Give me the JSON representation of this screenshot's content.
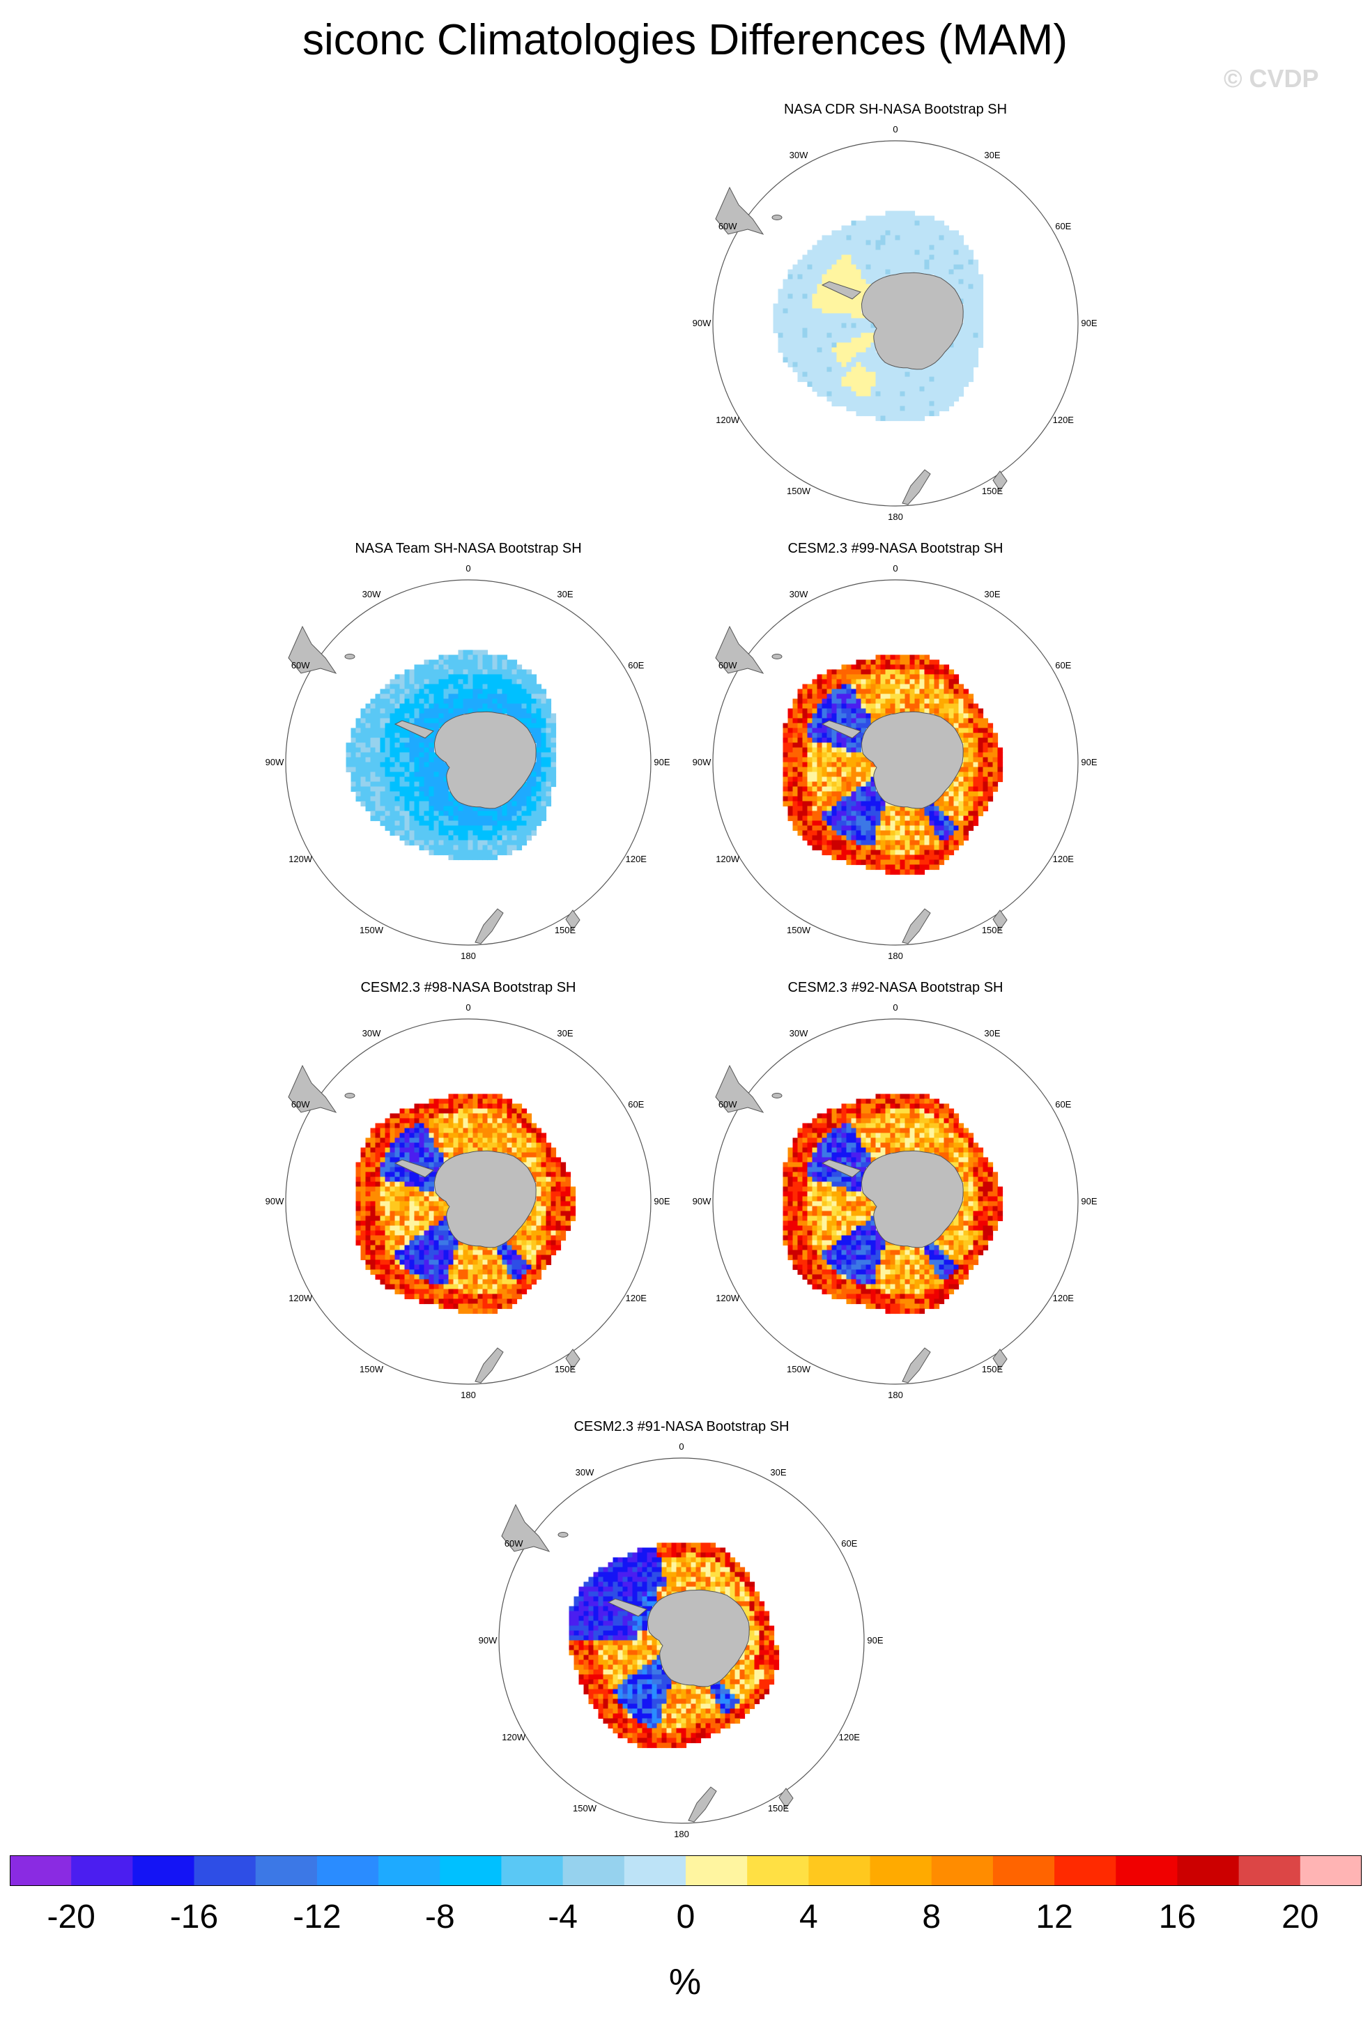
{
  "title": "siconc Climatologies Differences (MAM)",
  "watermark": "© CVDP",
  "longitude_labels": [
    "0",
    "30E",
    "60E",
    "90E",
    "120E",
    "150E",
    "180",
    "150W",
    "120W",
    "90W",
    "60W",
    "30W"
  ],
  "panels": [
    {
      "title": "NASA CDR SH-NASA Bootstrap SH",
      "pattern": "cdr"
    },
    {
      "title": "NASA Team SH-NASA Bootstrap SH",
      "pattern": "team"
    },
    {
      "title": "CESM2.3 #99-NASA Bootstrap SH",
      "pattern": "model"
    },
    {
      "title": "CESM2.3 #98-NASA Bootstrap SH",
      "pattern": "model"
    },
    {
      "title": "CESM2.3 #92-NASA Bootstrap SH",
      "pattern": "model"
    },
    {
      "title": "CESM2.3 #91-NASA Bootstrap SH",
      "pattern": "model91"
    }
  ],
  "colorbar": {
    "colors": [
      "#8a2be2",
      "#4b1ef0",
      "#1414f5",
      "#2e4ee6",
      "#3c78e6",
      "#2a8cff",
      "#1eaaff",
      "#00c0ff",
      "#5ac8f5",
      "#96d2ee",
      "#bde3f7",
      "#fff5a0",
      "#ffe044",
      "#ffc81e",
      "#ffaa00",
      "#ff8c00",
      "#ff6400",
      "#ff2a00",
      "#f00000",
      "#cc0000",
      "#dc4646",
      "#ffb4b4"
    ],
    "tick_labels": [
      "-20",
      "-16",
      "-12",
      "-8",
      "-4",
      "0",
      "4",
      "8",
      "12",
      "16",
      "20"
    ],
    "units": "%"
  },
  "colors": {
    "land": "#bebebe",
    "land_edge": "#555555"
  }
}
